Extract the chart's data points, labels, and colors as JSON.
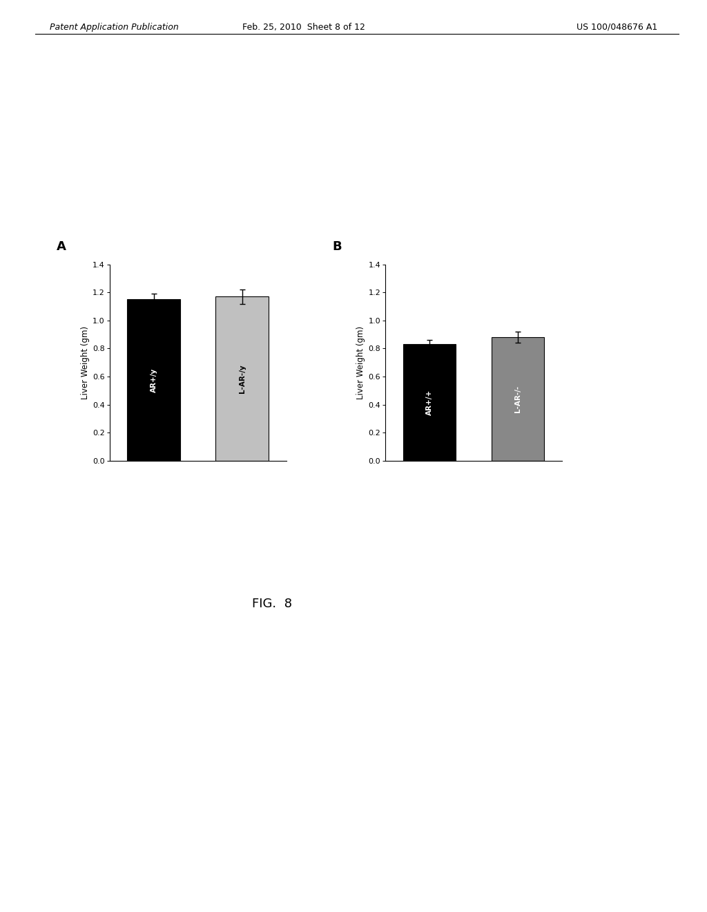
{
  "panel_A": {
    "categories": [
      "AR+/y",
      "L-AR⁻/y"
    ],
    "values": [
      1.15,
      1.17
    ],
    "errors": [
      0.04,
      0.05
    ],
    "bar_colors": [
      "#000000",
      "#c0c0c0"
    ],
    "ylabel": "Liver Weight (gm)",
    "ylim": [
      0.0,
      1.4
    ],
    "yticks": [
      0.0,
      0.2,
      0.4,
      0.6,
      0.8,
      1.0,
      1.2,
      1.4
    ],
    "label": "A",
    "label_texts": [
      "AR+/y",
      "L-AR-/y"
    ],
    "label_colors": [
      "white",
      "black"
    ]
  },
  "panel_B": {
    "categories": [
      "AR+/+",
      "L-AR⁻/⁻"
    ],
    "values": [
      0.83,
      0.88
    ],
    "errors": [
      0.03,
      0.04
    ],
    "bar_colors": [
      "#000000",
      "#888888"
    ],
    "ylabel": "Liver Weight (gm)",
    "ylim": [
      0.0,
      1.4
    ],
    "yticks": [
      0.0,
      0.2,
      0.4,
      0.6,
      0.8,
      1.0,
      1.2,
      1.4
    ],
    "label": "B",
    "label_texts": [
      "AR+/+",
      "L-AR-/-"
    ],
    "label_colors": [
      "white",
      "white"
    ]
  },
  "figure_label": "FIG.  8",
  "background_color": "#ffffff",
  "header_left": "Patent Application Publication",
  "header_mid": "Feb. 25, 2010  Sheet 8 of 12",
  "header_right": "US 100/048676 A1"
}
